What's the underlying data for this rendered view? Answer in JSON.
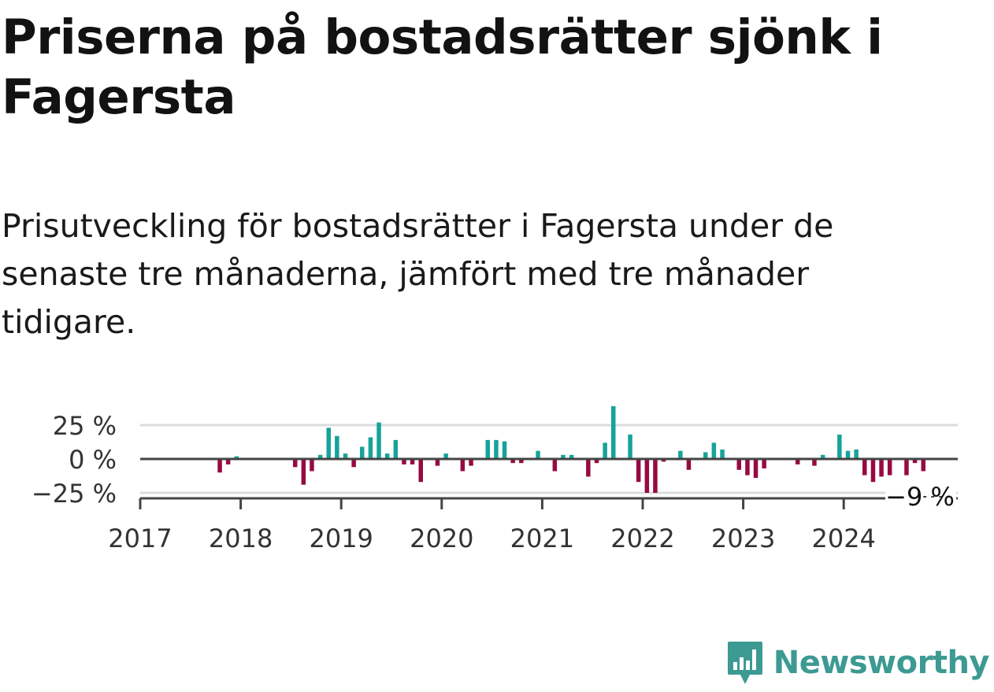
{
  "title": "Priserna på bostadsrätter sjönk i Fagersta",
  "subtitle": "Prisutveckling för bostadsrätter i Fagersta under de senaste tre månaderna, jämfört med tre månader tidigare.",
  "brand": "Newsworthy",
  "colors": {
    "positive": "#16a39a",
    "negative": "#960a42",
    "brand": "#3c9a93"
  },
  "chart_data": {
    "type": "bar",
    "x_start": "2017-01",
    "x_step": "month",
    "ylim": [
      -25,
      40
    ],
    "y_ticks": [
      {
        "value": 25,
        "label": "25 %"
      },
      {
        "value": 0,
        "label": "0 %"
      },
      {
        "value": -25,
        "label": "−25 %"
      }
    ],
    "x_ticks": [
      "2017",
      "2018",
      "2019",
      "2020",
      "2021",
      "2022",
      "2023",
      "2024"
    ],
    "last_value_label": "−9 %",
    "values": [
      null,
      null,
      null,
      null,
      null,
      null,
      null,
      null,
      null,
      -10,
      -4,
      2,
      null,
      null,
      null,
      null,
      null,
      null,
      -6,
      -19,
      -9,
      3,
      23,
      17,
      4,
      -6,
      9,
      16,
      27,
      4,
      14,
      -4,
      -4,
      -17,
      null,
      -5,
      4,
      null,
      -9,
      -5,
      null,
      14,
      14,
      13,
      -3,
      -3,
      null,
      6,
      null,
      -9,
      3,
      3,
      null,
      -13,
      -3,
      12,
      39,
      null,
      18,
      -17,
      -25,
      -25,
      -2,
      null,
      6,
      -8,
      null,
      5,
      12,
      7,
      null,
      -8,
      -12,
      -14,
      -7,
      null,
      null,
      null,
      -4,
      null,
      -5,
      3,
      null,
      18,
      6,
      7,
      -12,
      -17,
      -13,
      -12,
      null,
      -12,
      -3,
      -9
    ]
  }
}
